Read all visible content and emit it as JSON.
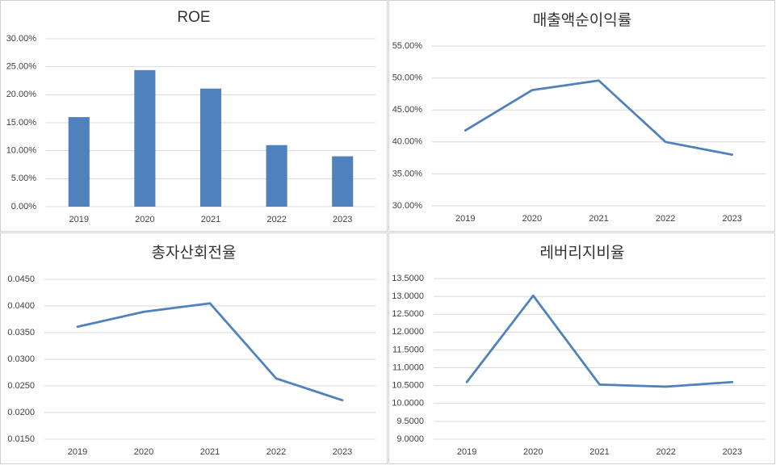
{
  "chart_data": [
    {
      "type": "bar",
      "title": "ROE",
      "categories": [
        "2019",
        "2020",
        "2021",
        "2022",
        "2023"
      ],
      "values": [
        16.0,
        24.4,
        21.1,
        11.0,
        9.0
      ],
      "color": "#4f81bd",
      "ylim": [
        0,
        30
      ],
      "yticks": [
        {
          "value": 0,
          "label": "0.00%"
        },
        {
          "value": 5,
          "label": "5.00%"
        },
        {
          "value": 10,
          "label": "10.00%"
        },
        {
          "value": 15,
          "label": "15.00%"
        },
        {
          "value": 20,
          "label": "20.00%"
        },
        {
          "value": 25,
          "label": "25.00%"
        },
        {
          "value": 30,
          "label": "30.00%"
        }
      ],
      "grid": true
    },
    {
      "type": "line",
      "title": "매출액순이익률",
      "categories": [
        "2019",
        "2020",
        "2021",
        "2022",
        "2023"
      ],
      "values": [
        41.8,
        48.1,
        49.6,
        40.0,
        38.0
      ],
      "color": "#4f81bd",
      "ylim": [
        30,
        55
      ],
      "yticks": [
        {
          "value": 30,
          "label": "30.00%"
        },
        {
          "value": 35,
          "label": "35.00%"
        },
        {
          "value": 40,
          "label": "40.00%"
        },
        {
          "value": 45,
          "label": "45.00%"
        },
        {
          "value": 50,
          "label": "50.00%"
        },
        {
          "value": 55,
          "label": "55.00%"
        }
      ],
      "grid": true
    },
    {
      "type": "line",
      "title": "총자산회전율",
      "categories": [
        "2019",
        "2020",
        "2021",
        "2022",
        "2023"
      ],
      "values": [
        0.0361,
        0.0389,
        0.0405,
        0.0264,
        0.0223
      ],
      "color": "#4f81bd",
      "ylim": [
        0.015,
        0.045
      ],
      "yticks": [
        {
          "value": 0.015,
          "label": "0.0150"
        },
        {
          "value": 0.02,
          "label": "0.0200"
        },
        {
          "value": 0.025,
          "label": "0.0250"
        },
        {
          "value": 0.03,
          "label": "0.0300"
        },
        {
          "value": 0.035,
          "label": "0.0350"
        },
        {
          "value": 0.04,
          "label": "0.0400"
        },
        {
          "value": 0.045,
          "label": "0.0450"
        }
      ],
      "grid": true
    },
    {
      "type": "line",
      "title": "레버리지비율",
      "categories": [
        "2019",
        "2020",
        "2021",
        "2022",
        "2023"
      ],
      "values": [
        10.6,
        13.02,
        10.53,
        10.47,
        10.6
      ],
      "color": "#4f81bd",
      "ylim": [
        9,
        13.5
      ],
      "yticks": [
        {
          "value": 9,
          "label": "9.0000"
        },
        {
          "value": 9.5,
          "label": "9.5000"
        },
        {
          "value": 10,
          "label": "10.0000"
        },
        {
          "value": 10.5,
          "label": "10.5000"
        },
        {
          "value": 11,
          "label": "11.0000"
        },
        {
          "value": 11.5,
          "label": "11.5000"
        },
        {
          "value": 12,
          "label": "12.0000"
        },
        {
          "value": 12.5,
          "label": "12.5000"
        },
        {
          "value": 13,
          "label": "13.0000"
        },
        {
          "value": 13.5,
          "label": "13.5000"
        }
      ],
      "grid": true
    }
  ]
}
